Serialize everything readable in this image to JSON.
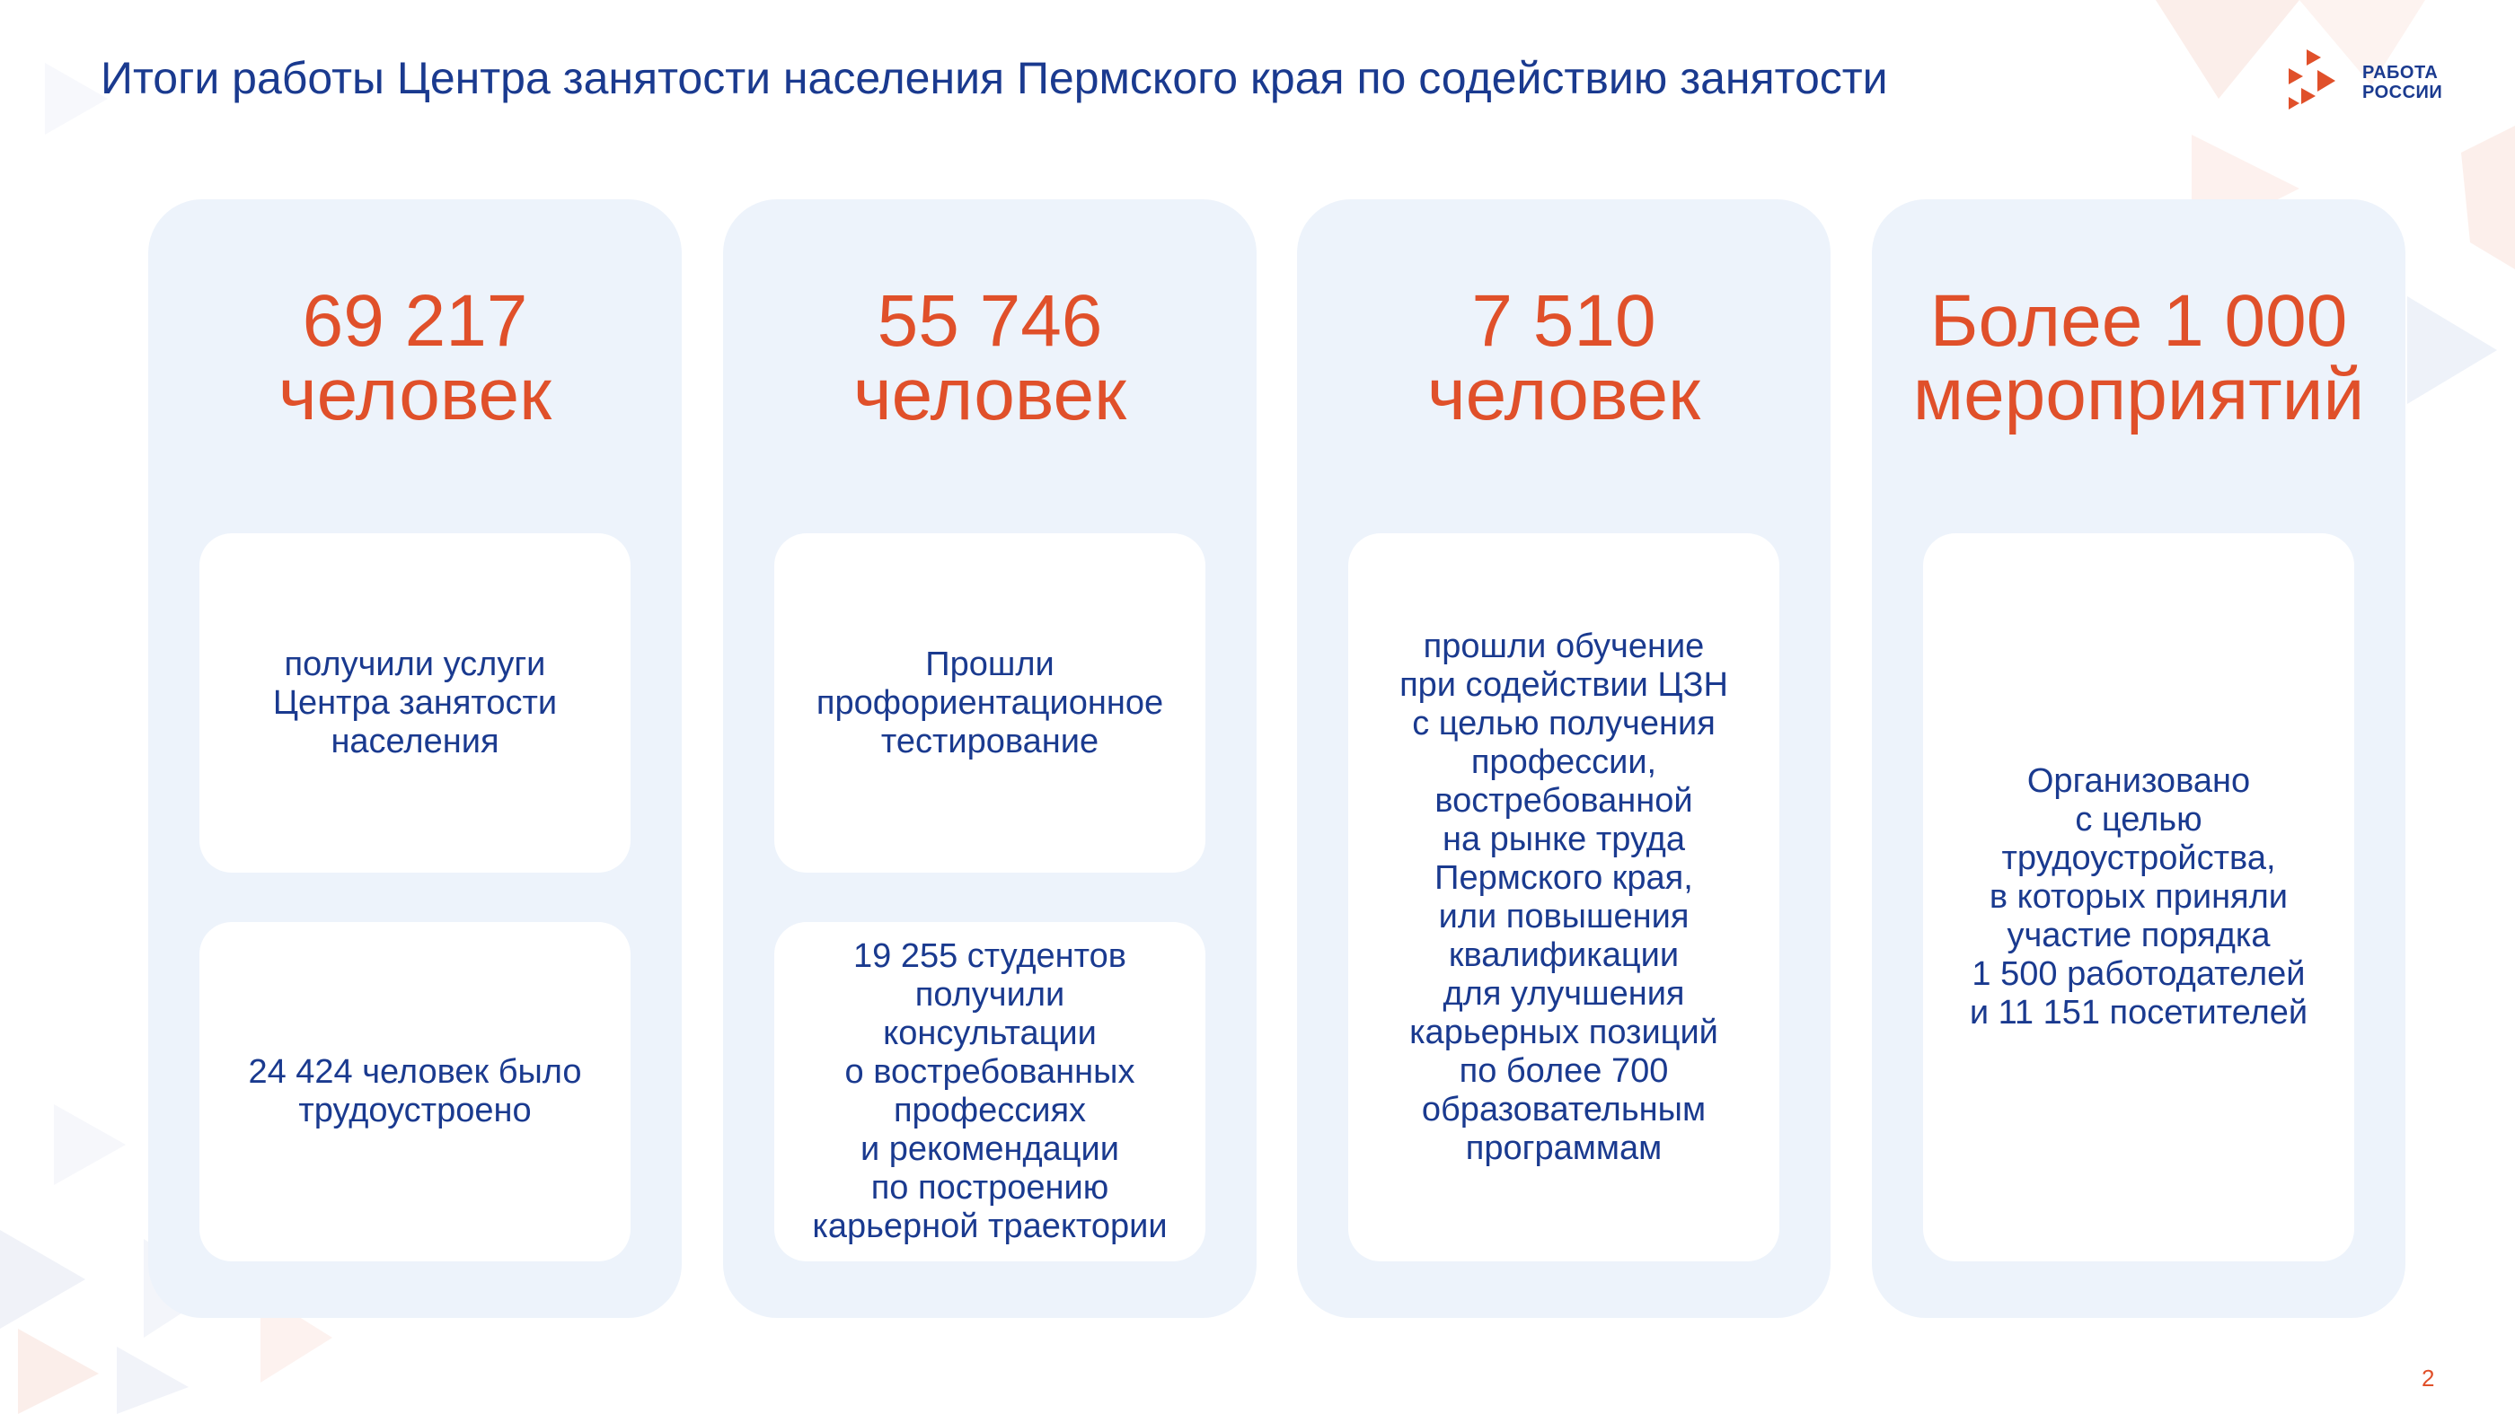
{
  "slide": {
    "title": "Итоги работы Центра занятости населения Пермского края по содействию занятости",
    "page_number": "2"
  },
  "logo": {
    "line1": "РАБОТА",
    "line2": "РОССИИ",
    "colors": {
      "primary": "#e0502a",
      "text": "#1a3a8f"
    }
  },
  "colors": {
    "accent": "#e0502a",
    "text": "#1a3a8f",
    "card_bg": "#edf3fb",
    "box_bg": "#ffffff"
  },
  "cards": [
    {
      "number": "69 217",
      "unit": "человек",
      "boxes": [
        "получили услуги\nЦентра занятости\nнаселения",
        "24 424 человек было\nтрудоустроено"
      ]
    },
    {
      "number": "55 746",
      "unit": "человек",
      "boxes": [
        "Прошли\nпрофориентационное\nтестирование",
        "19 255 студентов\nполучили\nконсультации\nо востребованных\nпрофессиях\nи рекомендации\nпо построению\nкарьерной траектории"
      ]
    },
    {
      "number": "7 510",
      "unit": "человек",
      "boxes": [
        "прошли обучение\nпри содействии ЦЗН\nс целью получения\nпрофессии,\nвостребованной\nна рынке труда\nПермского края,\nили повышения\nквалификации\nдля улучшения\nкарьерных позиций\nпо более 700\nобразовательным\nпрограммам"
      ]
    },
    {
      "number": "Более 1 000",
      "unit": "мероприятий",
      "boxes": [
        "Организовано\nс целью\nтрудоустройства,\nв которых приняли\nучастие порядка\n1 500 работодателей\nи  11 151 посетителей"
      ]
    }
  ]
}
